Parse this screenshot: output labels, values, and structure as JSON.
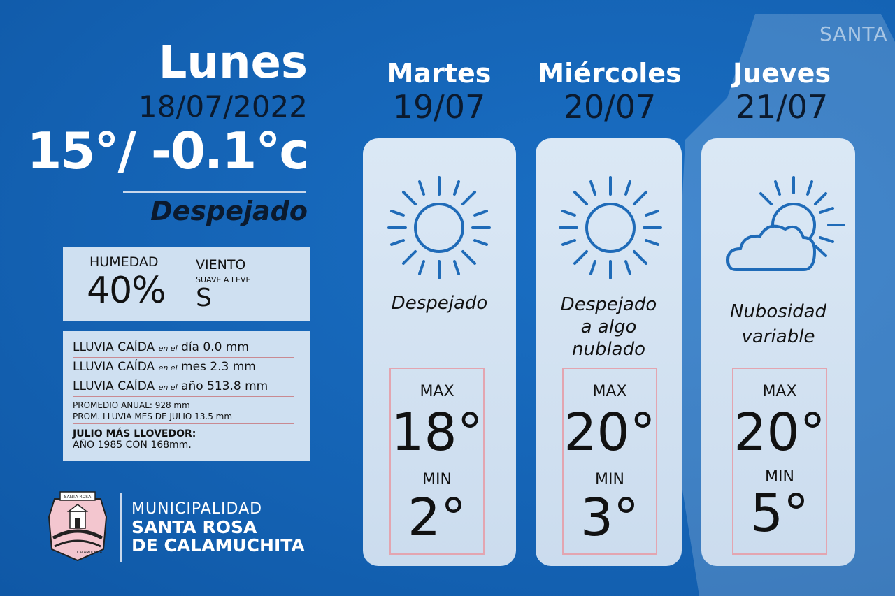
{
  "watermark_text": "SANTA",
  "today": {
    "day": "Lunes",
    "date": "18/07/2022",
    "temp": "15°/ -0.1°c",
    "condition": "Despejado",
    "humidity_label": "HUMEDAD",
    "humidity_value": "40%",
    "wind_label": "VIENTO",
    "wind_desc": "SUAVE A LEVE",
    "wind_dir": "S"
  },
  "rain": {
    "rows": [
      {
        "label": "LLUVIA CAÍDA",
        "qualifier": "en el",
        "rest": "día 0.0 mm"
      },
      {
        "label": "LLUVIA CAÍDA",
        "qualifier": "en el",
        "rest": "mes 2.3 mm"
      },
      {
        "label": "LLUVIA CAÍDA",
        "qualifier": "en el",
        "rest": "año 513.8 mm"
      }
    ],
    "annual_avg": "PROMEDIO ANUAL: 928 mm",
    "july_avg": "PROM. LLUVIA MES DE JULIO 13.5 mm",
    "record_title": "JULIO MÁS LLOVEDOR:",
    "record_value": "AÑO 1985 CON 168mm."
  },
  "logo": {
    "crest_top": "SANTA ROSA",
    "crest_bottom": "CALAMUCHITA",
    "line1": "MUNICIPALIDAD",
    "line2": "SANTA ROSA",
    "line3": "DE CALAMUCHITA"
  },
  "forecast": [
    {
      "day": "Martes",
      "date": "19/07",
      "icon": "sun-icon",
      "condition_lines": [
        "Despejado"
      ],
      "max_label": "MAX",
      "max": "18°",
      "min_label": "MIN",
      "min": "2°"
    },
    {
      "day": "Miércoles",
      "date": "20/07",
      "icon": "sun-icon",
      "condition_lines": [
        "Despejado",
        "a algo",
        "nublado"
      ],
      "max_label": "MAX",
      "max": "20°",
      "min_label": "MIN",
      "min": "3°"
    },
    {
      "day": "Jueves",
      "date": "21/07",
      "icon": "partly-cloudy-icon",
      "condition_lines": [
        "Nubosidad",
        "variable"
      ],
      "max_label": "MAX",
      "max": "20°",
      "min_label": "MIN",
      "min": "5°"
    }
  ],
  "colors": {
    "background": "#1565b8",
    "card": "#cfe0f1",
    "icon_stroke": "#1f6bb8",
    "box_border": "#e3a5b0"
  }
}
